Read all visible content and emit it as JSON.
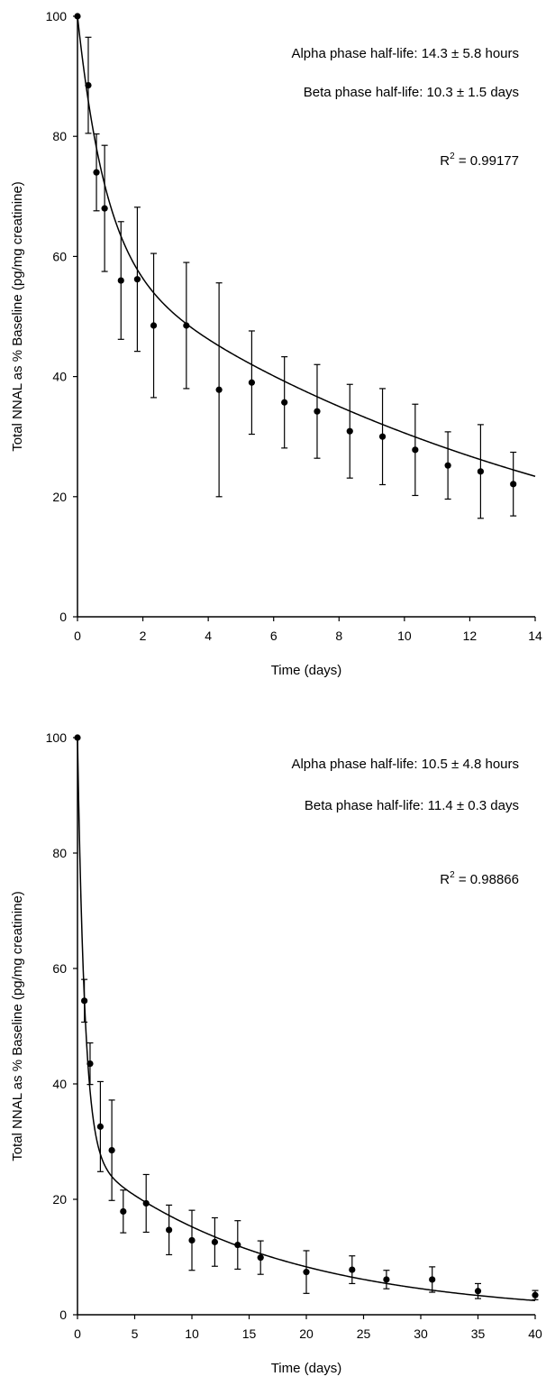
{
  "chart_data": [
    {
      "type": "scatter",
      "title": "",
      "xlabel": "Time (days)",
      "ylabel": "Total NNAL as % Baseline (pg/mg creatinine)",
      "xlim": [
        0,
        14
      ],
      "ylim": [
        0,
        100
      ],
      "xticks": [
        0,
        2,
        4,
        6,
        8,
        10,
        12,
        14
      ],
      "yticks": [
        0,
        20,
        40,
        60,
        80,
        100
      ],
      "grid": false,
      "annotations": {
        "alpha": "Alpha phase half-life: 14.3 ± 5.8 hours",
        "beta": "Beta phase half-life: 10.3 ± 1.5 days",
        "r2_prefix": "R",
        "r2_exp": "2",
        "r2_value": " = 0.99177"
      },
      "series": [
        {
          "kind": "observed",
          "x": [
            0,
            0.33,
            0.58,
            0.83,
            1.33,
            1.83,
            2.33,
            3.33,
            4.33,
            5.33,
            6.33,
            7.33,
            8.33,
            9.33,
            10.33,
            11.33,
            12.33,
            13.33
          ],
          "y": [
            100,
            88.5,
            74,
            68,
            56,
            56.2,
            48.5,
            48.5,
            37.8,
            39,
            35.7,
            34.2,
            30.9,
            30,
            27.8,
            25.2,
            24.2,
            22.1
          ],
          "error": [
            0,
            8,
            6.4,
            10.5,
            9.8,
            12,
            12,
            10.5,
            17.8,
            8.6,
            7.6,
            7.8,
            7.8,
            8,
            7.6,
            5.6,
            7.8,
            5.3
          ]
        },
        {
          "kind": "fitted",
          "curve": {
            "A": 40,
            "alpha_half_life_days": 0.596,
            "B": 60,
            "beta_half_life_days": 10.3
          }
        }
      ]
    },
    {
      "type": "scatter",
      "title": "",
      "xlabel": "Time (days)",
      "ylabel": "Total NNAL as % Baseline (pg/mg creatinine)",
      "xlim": [
        0,
        40
      ],
      "ylim": [
        0,
        100
      ],
      "xticks": [
        0,
        5,
        10,
        15,
        20,
        25,
        30,
        35,
        40
      ],
      "yticks": [
        0,
        20,
        40,
        60,
        80,
        100
      ],
      "grid": false,
      "annotations": {
        "alpha": "Alpha phase half-life: 10.5 ± 4.8 hours",
        "beta": "Beta phase half-life: 11.4 ± 0.3 days",
        "r2_prefix": "R",
        "r2_exp": "2",
        "r2_value": " = 0.98866"
      },
      "series": [
        {
          "kind": "observed",
          "x": [
            0,
            0.6,
            1.1,
            2,
            3,
            4,
            6,
            8,
            10,
            12,
            14,
            16,
            20,
            24,
            27,
            31,
            35,
            40
          ],
          "y": [
            100,
            54.4,
            43.5,
            32.6,
            28.5,
            17.9,
            19.3,
            14.7,
            12.9,
            12.6,
            12.1,
            9.9,
            7.4,
            7.8,
            6.1,
            6.1,
            4.1,
            3.4
          ],
          "error": [
            0,
            3.7,
            3.6,
            7.8,
            8.7,
            3.7,
            5,
            4.3,
            5.2,
            4.2,
            4.2,
            2.9,
            3.7,
            2.4,
            1.6,
            2.2,
            1.3,
            0.8
          ]
        },
        {
          "kind": "fitted",
          "curve": {
            "A": 72,
            "alpha_half_life_days": 0.4375,
            "B": 28,
            "beta_half_life_days": 11.4
          }
        }
      ]
    }
  ]
}
